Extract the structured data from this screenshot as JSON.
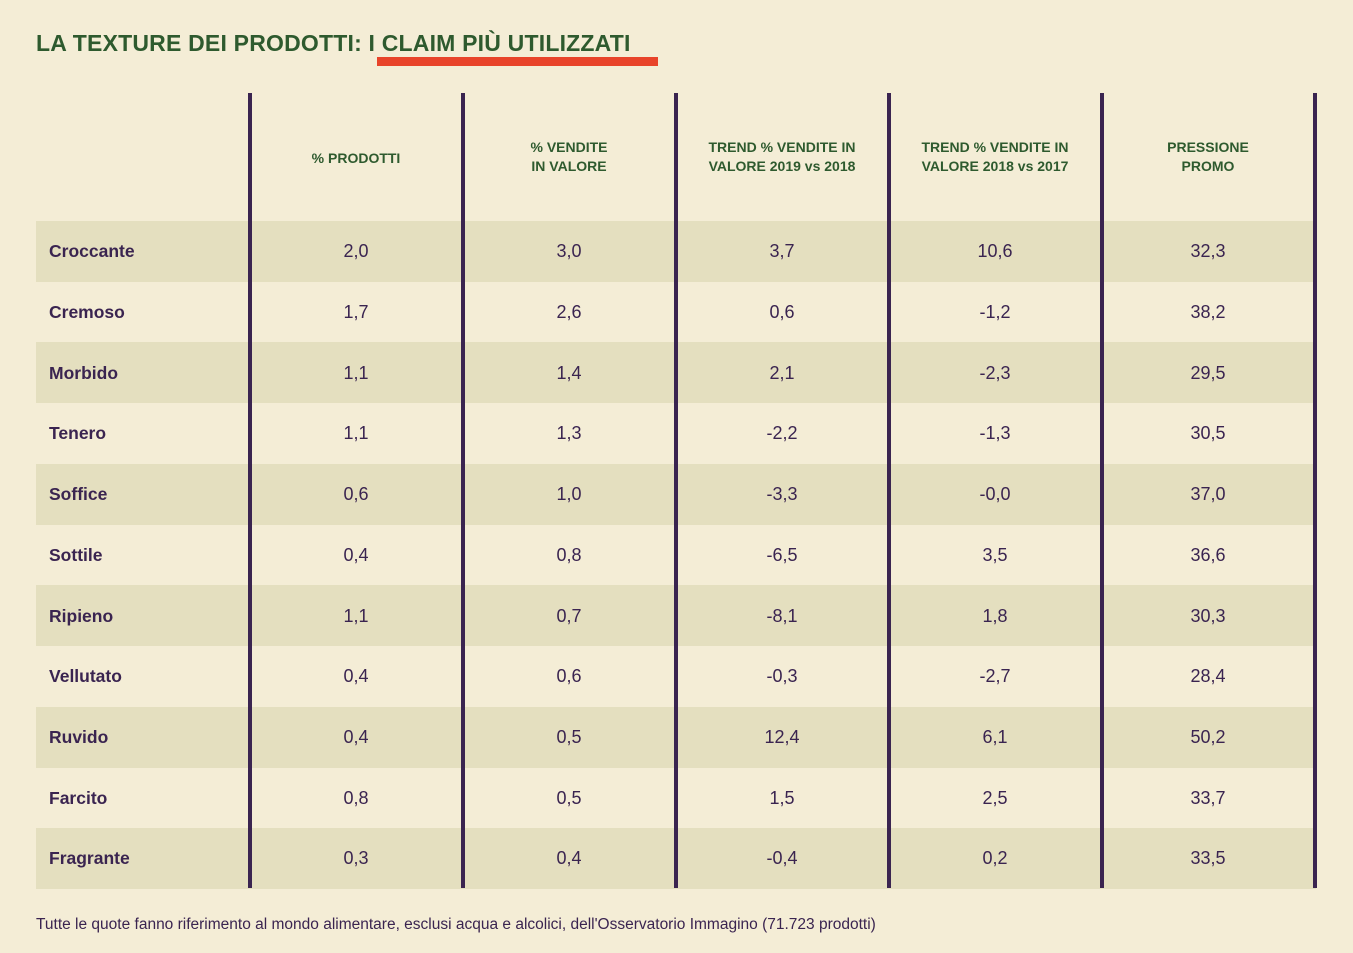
{
  "title": {
    "prefix": "LA TEXTURE DEI PRODOTTI: ",
    "highlight": "I CLAIM PIÙ UTILIZZATI",
    "accent_color": "#e8442a",
    "title_color": "#2e5a2e"
  },
  "table": {
    "headers": [
      "% PRODOTTI",
      "% VENDITE\nIN VALORE",
      "TREND % VENDITE IN\nVALORE 2019 vs 2018",
      "TREND % VENDITE IN\nVALORE 2018 vs 2017",
      "PRESSIONE\nPROMO"
    ],
    "rows": [
      {
        "label": "Croccante",
        "values": [
          "2,0",
          "3,0",
          "3,7",
          "10,6",
          "32,3"
        ]
      },
      {
        "label": "Cremoso",
        "values": [
          "1,7",
          "2,6",
          "0,6",
          "-1,2",
          "38,2"
        ]
      },
      {
        "label": "Morbido",
        "values": [
          "1,1",
          "1,4",
          "2,1",
          "-2,3",
          "29,5"
        ]
      },
      {
        "label": "Tenero",
        "values": [
          "1,1",
          "1,3",
          "-2,2",
          "-1,3",
          "30,5"
        ]
      },
      {
        "label": "Soffice",
        "values": [
          "0,6",
          "1,0",
          "-3,3",
          "-0,0",
          "37,0"
        ]
      },
      {
        "label": "Sottile",
        "values": [
          "0,4",
          "0,8",
          "-6,5",
          "3,5",
          "36,6"
        ]
      },
      {
        "label": "Ripieno",
        "values": [
          "1,1",
          "0,7",
          "-8,1",
          "1,8",
          "30,3"
        ]
      },
      {
        "label": "Vellutato",
        "values": [
          "0,4",
          "0,6",
          "-0,3",
          "-2,7",
          "28,4"
        ]
      },
      {
        "label": "Ruvido",
        "values": [
          "0,4",
          "0,5",
          "12,4",
          "6,1",
          "50,2"
        ]
      },
      {
        "label": "Farcito",
        "values": [
          "0,8",
          "0,5",
          "1,5",
          "2,5",
          "33,7"
        ]
      },
      {
        "label": "Fragrante",
        "values": [
          "0,3",
          "0,4",
          "-0,4",
          "0,2",
          "33,5"
        ]
      }
    ]
  },
  "footnote": "Tutte le quote fanno riferimento al mondo alimentare, esclusi acqua e alcolici, dell'Osservatorio Immagino (71.723 prodotti)"
}
